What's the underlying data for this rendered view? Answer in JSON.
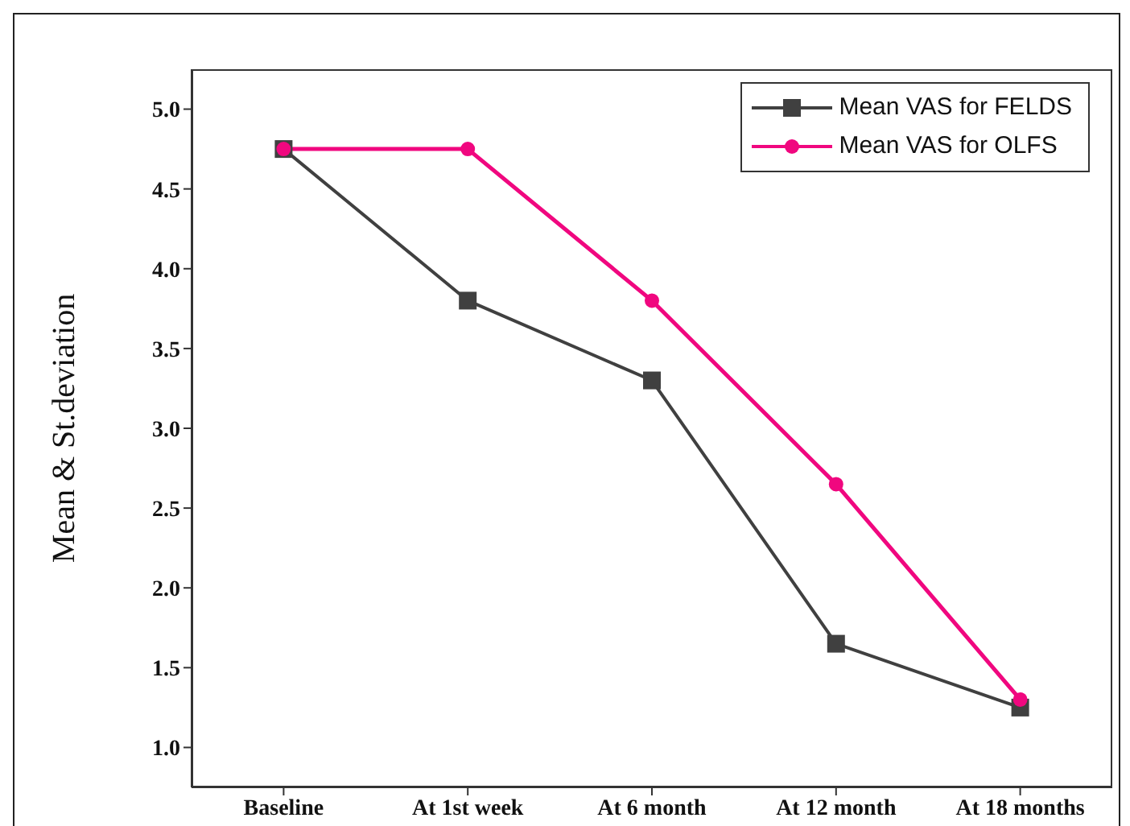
{
  "chart_data": {
    "type": "line",
    "ylabel": "Mean & St.deviation",
    "categories": [
      "Baseline",
      "At 1st week",
      "At 6 month",
      "At 12 month",
      "At 18 months"
    ],
    "series": [
      {
        "name": "Mean VAS for FELDS",
        "color": "#404040",
        "marker": "square",
        "values": [
          4.75,
          3.8,
          3.3,
          1.65,
          1.25
        ]
      },
      {
        "name": "Mean VAS for OLFS",
        "color": "#f0077f",
        "marker": "circle",
        "values": [
          4.75,
          4.75,
          3.8,
          2.65,
          1.3
        ]
      }
    ],
    "ylim": [
      0.75,
      5.25
    ],
    "yticks": [
      {
        "value": 1,
        "label": "1.0"
      },
      {
        "value": 1.5,
        "label": "1.5"
      },
      {
        "value": 2,
        "label": "2.0"
      },
      {
        "value": 2.5,
        "label": "2.5"
      },
      {
        "value": 3,
        "label": "3.0"
      },
      {
        "value": 3.5,
        "label": "3.5"
      },
      {
        "value": 4,
        "label": "4.0"
      },
      {
        "value": 4.5,
        "label": "4.5"
      },
      {
        "value": 5,
        "label": "5.0"
      }
    ],
    "grid": false,
    "legend": "top right",
    "line_style": "solid"
  }
}
